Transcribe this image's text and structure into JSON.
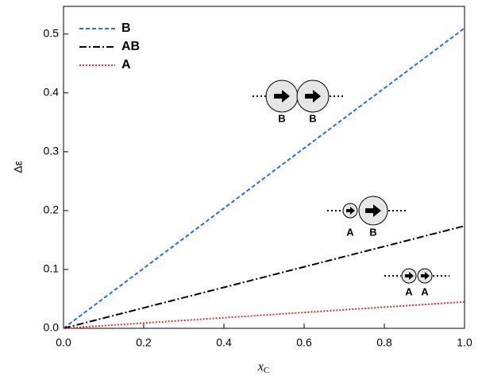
{
  "chart_data": {
    "type": "line",
    "x_label": "x",
    "x_label_sub": "C",
    "y_label": "Δε",
    "x": [
      0,
      1
    ],
    "series": [
      {
        "name": "B",
        "color": "#2a6fd6",
        "dash": "dashed",
        "values": [
          0,
          0.51
        ]
      },
      {
        "name": "AB",
        "color": "#000000",
        "dash": "dashdot",
        "values": [
          0,
          0.174
        ]
      },
      {
        "name": "A",
        "color": "#e8312d",
        "dash": "dotted",
        "values": [
          0,
          0.045
        ]
      }
    ],
    "xlim": [
      0,
      1
    ],
    "ylim": [
      0,
      0.547
    ],
    "xticks": [
      {
        "value": 0,
        "label": "0.0"
      },
      0.2,
      0.4,
      0.6,
      0.8,
      {
        "value": 1,
        "label": "1.0"
      }
    ],
    "yticks": [
      {
        "value": 0,
        "label": "0.0"
      },
      0.1,
      0.2,
      0.3,
      0.4,
      0.5
    ],
    "legend": "upper-left",
    "annotations": [
      {
        "labels": [
          "B",
          "B"
        ]
      },
      {
        "labels": [
          "A",
          "B"
        ]
      },
      {
        "labels": [
          "A",
          "A"
        ]
      }
    ]
  }
}
